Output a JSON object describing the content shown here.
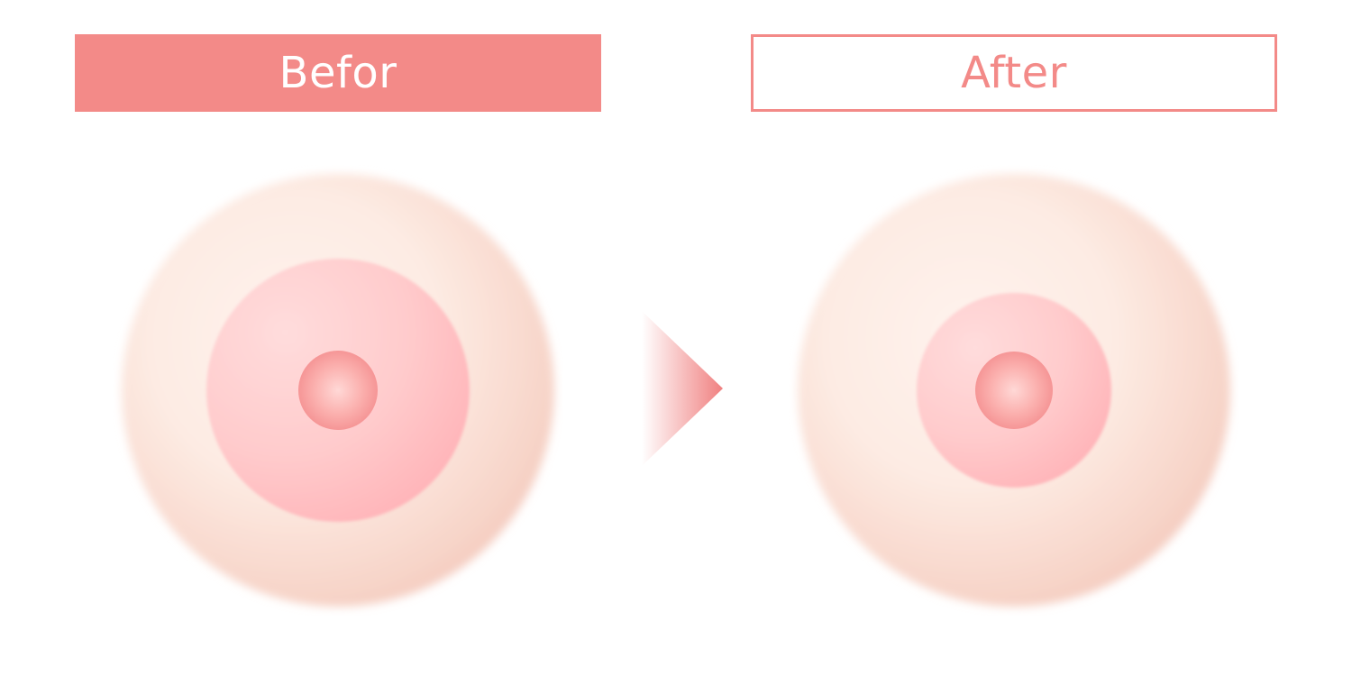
{
  "labels": {
    "before": "Befor",
    "after": "After"
  },
  "colors": {
    "accent": "#f38a88",
    "skin_light": "#fdf0ea",
    "skin_shadow": "#f2c8bc",
    "areola": "#ffb3b8",
    "nipple": "#f99a9b"
  },
  "icons": {
    "arrow": "arrow-right-icon"
  }
}
